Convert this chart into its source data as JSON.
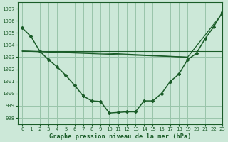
{
  "title": "Graphe pression niveau de la mer (hPa)",
  "background_color": "#cce8d8",
  "grid_color": "#99c4aa",
  "line_color": "#1a5c28",
  "xlim": [
    -0.5,
    23
  ],
  "ylim": [
    997.5,
    1007.5
  ],
  "yticks": [
    998,
    999,
    1000,
    1001,
    1002,
    1003,
    1004,
    1005,
    1006,
    1007
  ],
  "xticks": [
    0,
    1,
    2,
    3,
    4,
    5,
    6,
    7,
    8,
    9,
    10,
    11,
    12,
    13,
    14,
    15,
    16,
    17,
    18,
    19,
    20,
    21,
    22,
    23
  ],
  "series1_x": [
    0,
    1,
    2,
    3,
    4,
    5,
    6,
    7,
    8,
    9,
    10,
    11,
    12,
    13,
    14,
    15,
    16,
    17,
    18,
    19,
    20,
    21,
    22,
    23
  ],
  "series1_y": [
    1005.4,
    1004.7,
    1003.5,
    1002.8,
    1002.2,
    1001.5,
    1000.7,
    999.8,
    999.4,
    999.35,
    998.4,
    998.45,
    998.5,
    998.5,
    999.4,
    999.4,
    1000.0,
    1001.0,
    1001.6,
    1002.8,
    1003.3,
    1004.5,
    1005.5,
    1006.7
  ],
  "series2_x": [
    0,
    9,
    19,
    23
  ],
  "series2_y": [
    1003.5,
    1003.35,
    1003.0,
    1006.6
  ],
  "series3_x": [
    0,
    19
  ],
  "series3_y": [
    1003.5,
    1003.0
  ],
  "xlabel_fontsize": 6.2,
  "tick_fontsize": 5.2,
  "figwidth": 3.2,
  "figheight": 2.0,
  "dpi": 100
}
